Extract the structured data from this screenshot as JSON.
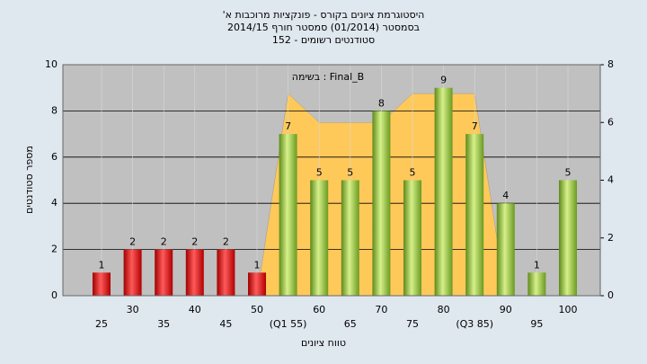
{
  "chart_data": {
    "type": "bar",
    "title": "היסטוגרמת ציונים בקורס - פונקציות מרוכבות א'",
    "subtitle": "בסמסטר (01/2014) סמסטר חורף 2014/15",
    "subtitle2": "סטודנטים רשומים - 152",
    "annotation": "Final_B : בשימה",
    "x_label": "טווח ציונים",
    "y_label": "מספר סטודנטים",
    "categories": [
      "25",
      "30",
      "35",
      "40",
      "45",
      "50",
      "(Q1 55)",
      "60",
      "65",
      "70",
      "75",
      "80",
      "(Q3 85)",
      "90",
      "95",
      "100"
    ],
    "series": [
      {
        "values": [
          1,
          2,
          2,
          2,
          2,
          1,
          7,
          5,
          5,
          8,
          5,
          9,
          7,
          4,
          1,
          5
        ],
        "colors": [
          "red",
          "red",
          "red",
          "red",
          "red",
          "red",
          "green",
          "green",
          "green",
          "green",
          "green",
          "green",
          "green",
          "green",
          "green",
          "green"
        ]
      },
      {
        "type": "area",
        "axis": "y2",
        "color": "#ffc95a",
        "values": [
          null,
          null,
          null,
          null,
          null,
          0,
          7,
          6,
          6,
          6,
          7,
          7,
          7,
          0,
          null,
          null
        ]
      }
    ],
    "ylim": [
      0,
      10
    ],
    "yticks": [
      0,
      2,
      4,
      6,
      8,
      10
    ],
    "y2lim": [
      0,
      8
    ],
    "y2ticks": [
      0,
      2,
      4,
      6,
      8
    ],
    "grid": true
  }
}
